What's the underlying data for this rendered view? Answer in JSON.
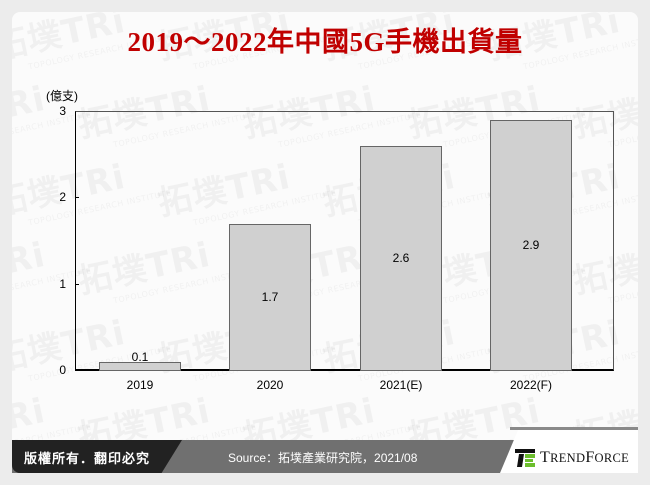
{
  "title": "2019～2022年中國5G手機出貨量",
  "chart_data": {
    "type": "bar",
    "title": "2019～2022年中國5G手機出貨量",
    "xlabel": "",
    "ylabel": "(億支)",
    "categories": [
      "2019",
      "2020",
      "2021(E)",
      "2022(F)"
    ],
    "values": [
      0.1,
      1.7,
      2.6,
      2.9
    ],
    "value_labels": [
      "0.1",
      "1.7",
      "2.6",
      "2.9"
    ],
    "ylim": [
      0,
      3
    ],
    "yticks": [
      "0",
      "1",
      "2",
      "3"
    ],
    "bar_color": "#d0d0d0",
    "grid": false,
    "legend": null
  },
  "footer": {
    "copyright": "版權所有．翻印必究",
    "source": "Source：拓墣產業研究院，2021/08",
    "logo_text_big_T": "T",
    "logo_text_rend": "REND",
    "logo_text_big_F": "F",
    "logo_text_orce": "ORCE"
  },
  "watermark": {
    "brand": "拓墣TRi",
    "tagline": "TOPOLOGY RESEARCH INSTITUTE"
  },
  "colors": {
    "title": "#c00000",
    "footer_dark": "#222222",
    "footer_mid": "#707070",
    "logo_green": "#6cbe2d"
  }
}
